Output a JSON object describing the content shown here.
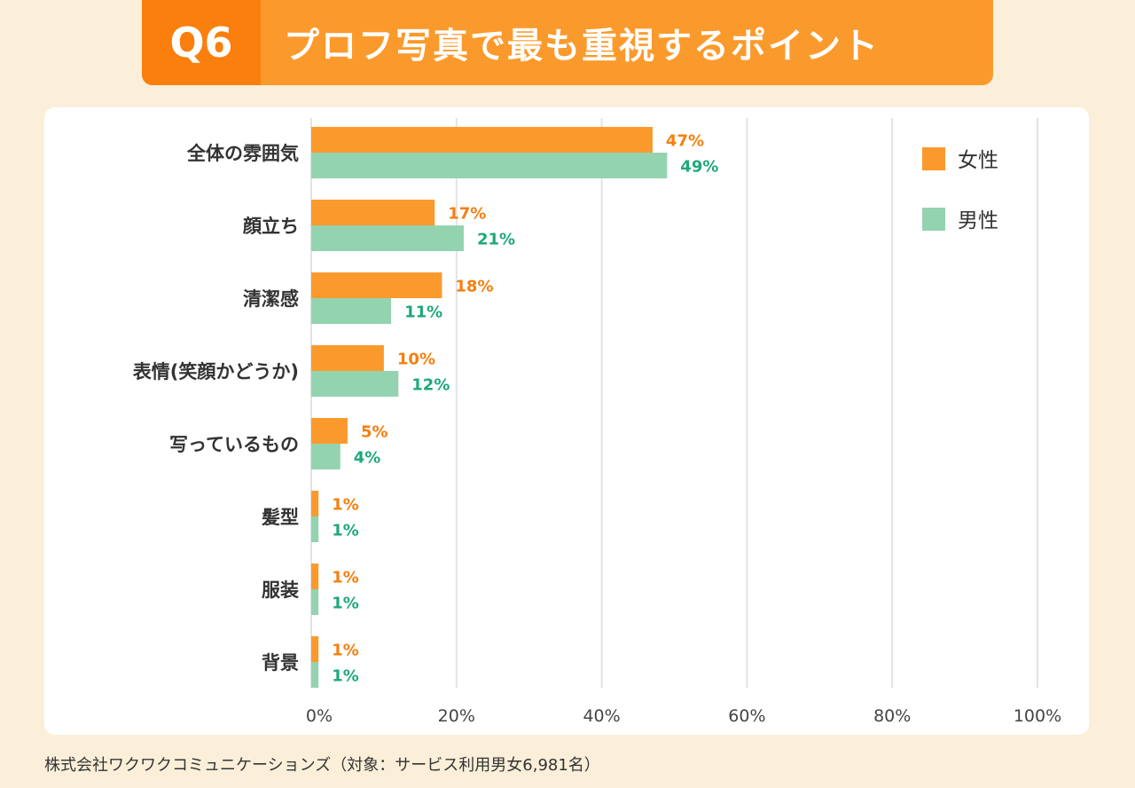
{
  "header": {
    "qnum": "Q6",
    "title": "プロフ写真で最も重視するポイント"
  },
  "footer": "株式会社ワクワクコミュニケーションズ（対象：サービス利用男女6,981名）",
  "colors": {
    "female": "#fb9a2c",
    "male": "#93d3b0",
    "female_label": "#f57f0f",
    "male_label": "#1fa87a"
  },
  "chart_data": {
    "type": "bar",
    "orientation": "horizontal",
    "title": "プロフ写真で最も重視するポイント",
    "categories": [
      "全体の雰囲気",
      "顔立ち",
      "清潔感",
      "表情(笑顔かどうか)",
      "写っているもの",
      "髪型",
      "服装",
      "背景"
    ],
    "series": [
      {
        "name": "女性",
        "values": [
          47,
          17,
          18,
          10,
          5,
          1,
          1,
          1
        ]
      },
      {
        "name": "男性",
        "values": [
          49,
          21,
          11,
          12,
          4,
          1,
          1,
          1
        ]
      }
    ],
    "xlim": [
      0,
      100
    ],
    "xticks": [
      "0%",
      "20%",
      "40%",
      "60%",
      "80%",
      "100%"
    ],
    "grid": true,
    "legend": "top-right"
  }
}
